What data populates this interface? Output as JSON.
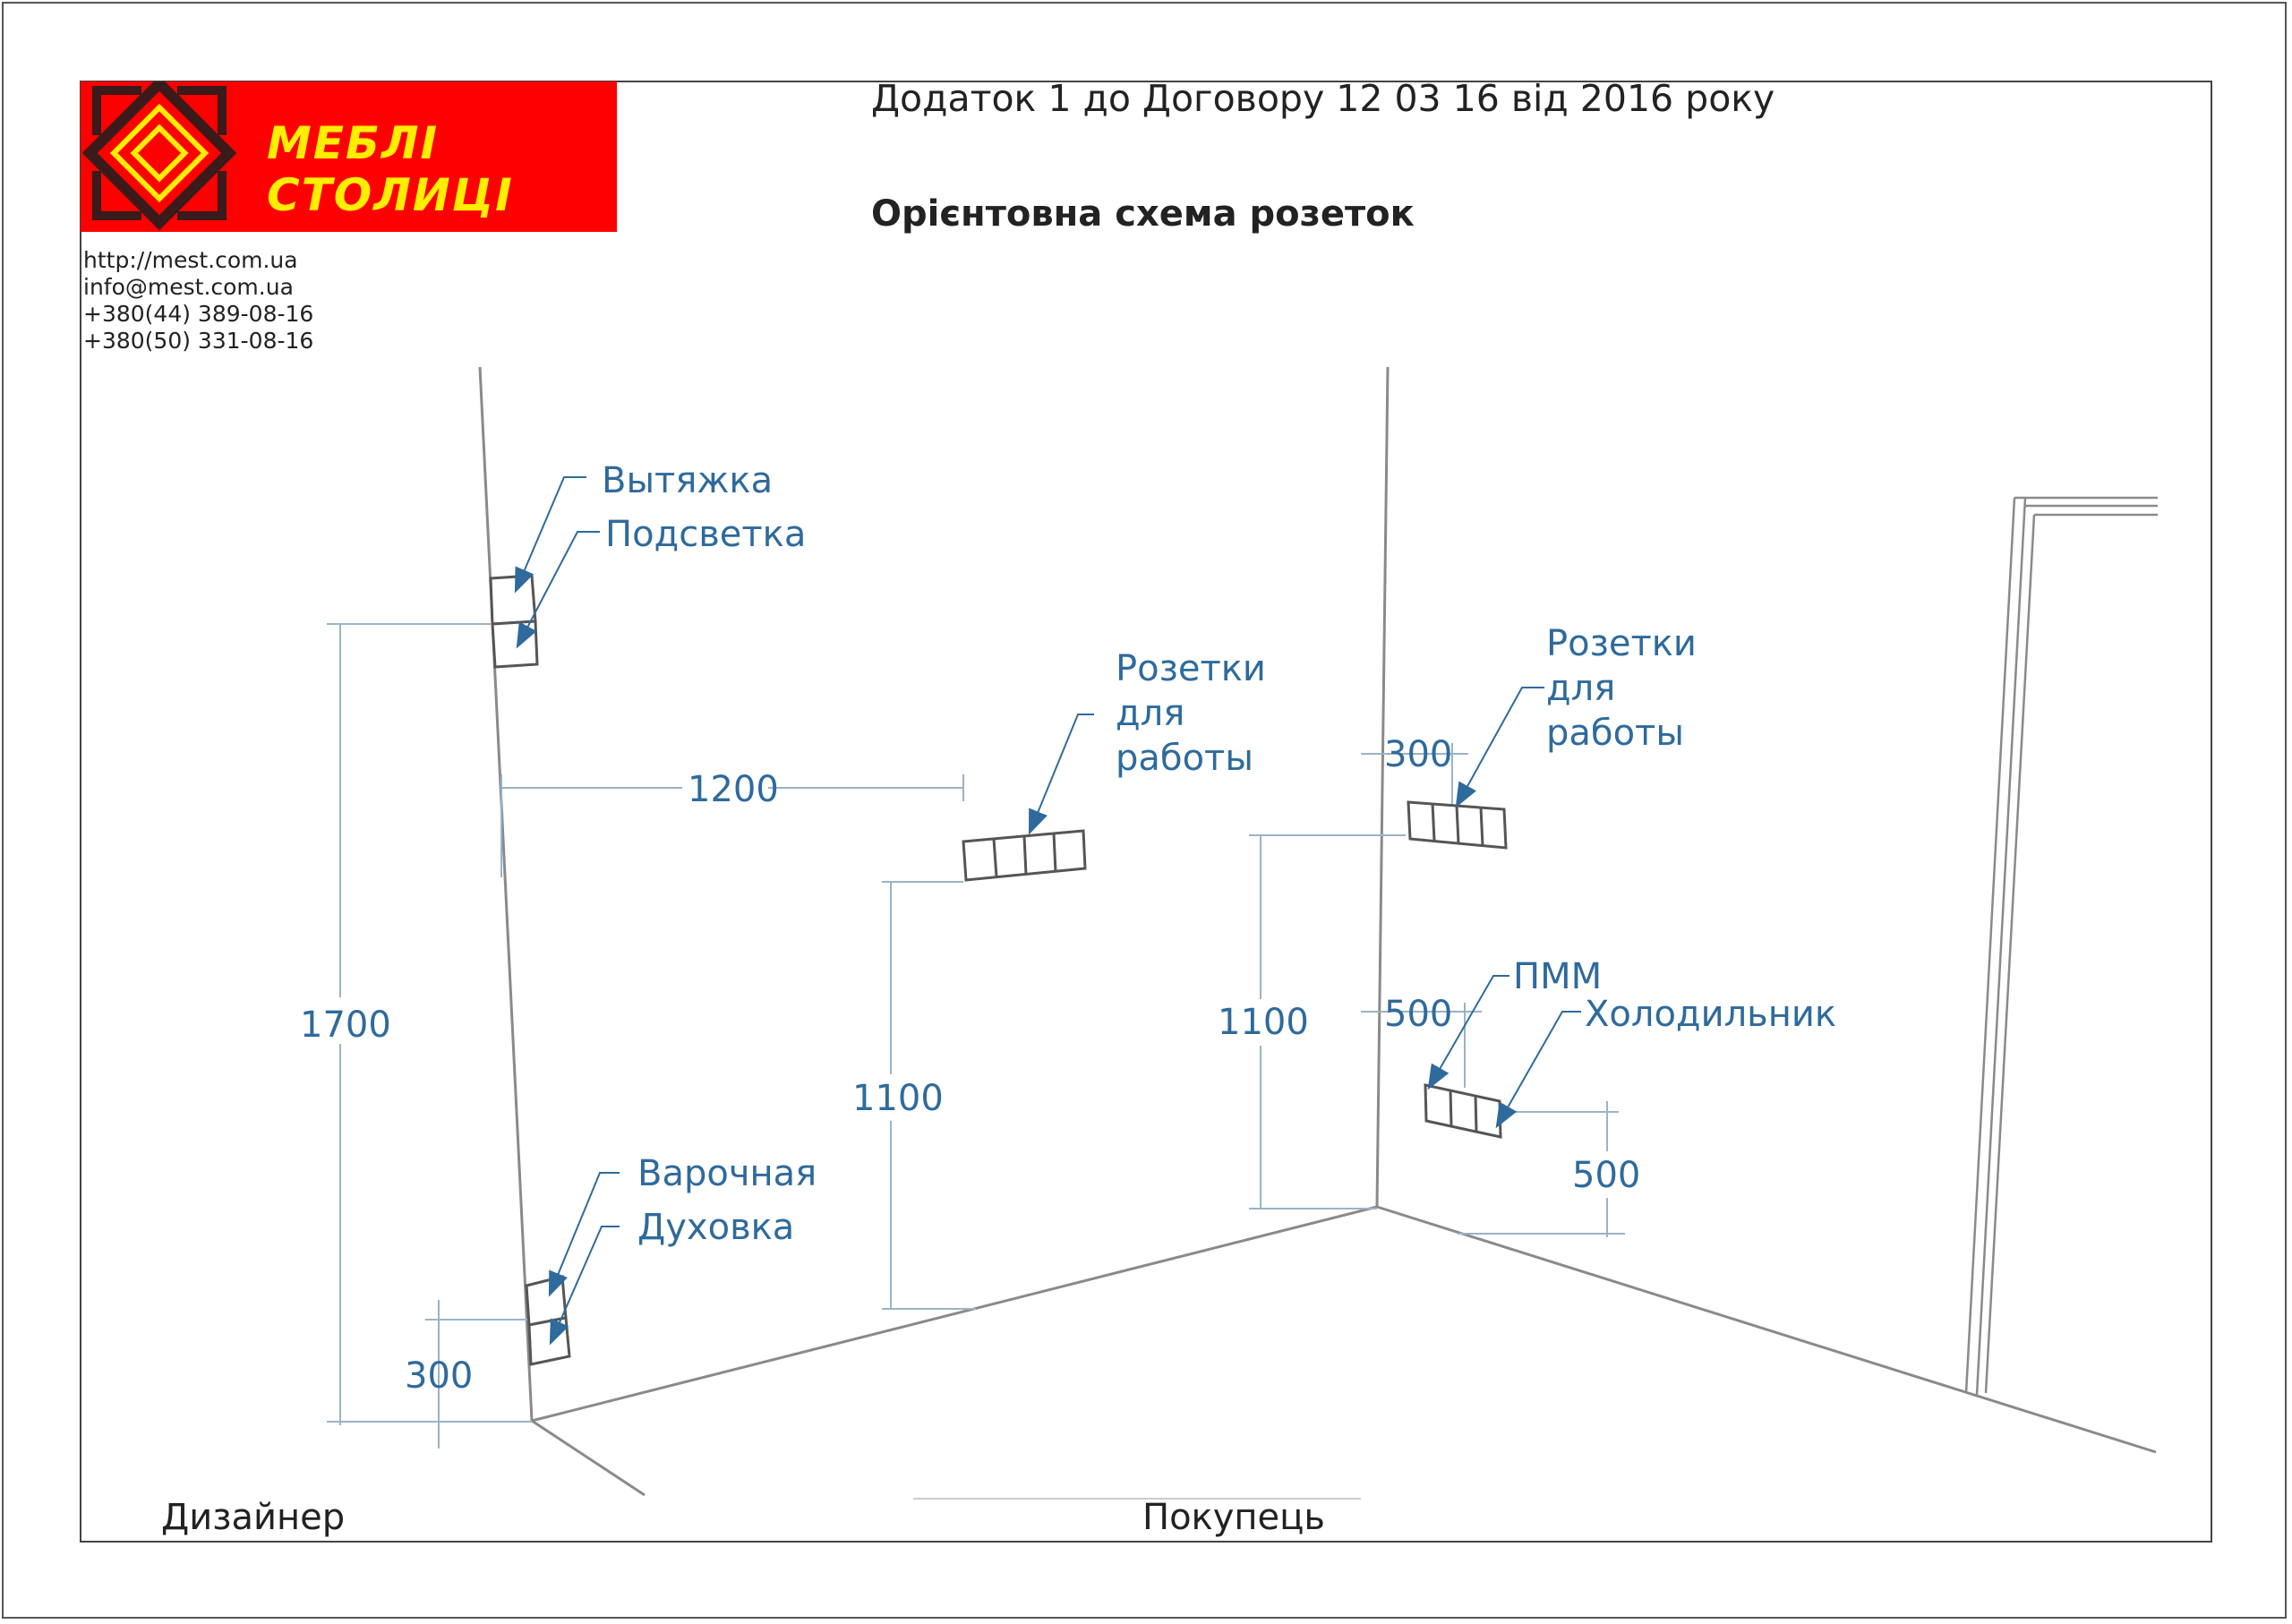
{
  "header": {
    "title": "Додаток 1 до Договору 12 03 16 від 2016 року",
    "subtitle": "Орієнтовна схема розеток"
  },
  "brand": {
    "name": "МЕБЛІ СТОЛИЦІ",
    "logo_icon": "diamond-ornament-icon",
    "background_color": "#ff0000",
    "text_color": "#ffee00"
  },
  "contacts": {
    "website": "http://mest.com.ua",
    "email": "info@mest.com.ua",
    "phone1": "+380(44)   389-08-16",
    "phone2": "+380(50)   331-08-16"
  },
  "labels": {
    "hood": "Вытяжка",
    "lighting": "Подсветка",
    "hob": "Варочная",
    "oven": "Духовка",
    "sockets_left_1": "Розетки",
    "sockets_left_2": "для",
    "sockets_left_3": "работы",
    "sockets_right_1": "Розетки",
    "sockets_right_2": "для",
    "sockets_right_3": "работы",
    "dishwasher": "ПММ",
    "fridge": "Холодильник"
  },
  "dimensions": {
    "hood_height": "1700",
    "work_offset": "1200",
    "work_height_left": "1100",
    "work_height_right": "1100",
    "work_right_offset": "300",
    "appliances_offset": "500",
    "appliances_height": "500",
    "hob_offset": "300"
  },
  "footer": {
    "designer": "Дизайнер",
    "buyer": "Покупець"
  },
  "colors": {
    "annotation": "#2f6a9c",
    "dimension_line": "#9ab3c7",
    "wall_line": "#8a8a8a",
    "socket_outline": "#555555"
  }
}
